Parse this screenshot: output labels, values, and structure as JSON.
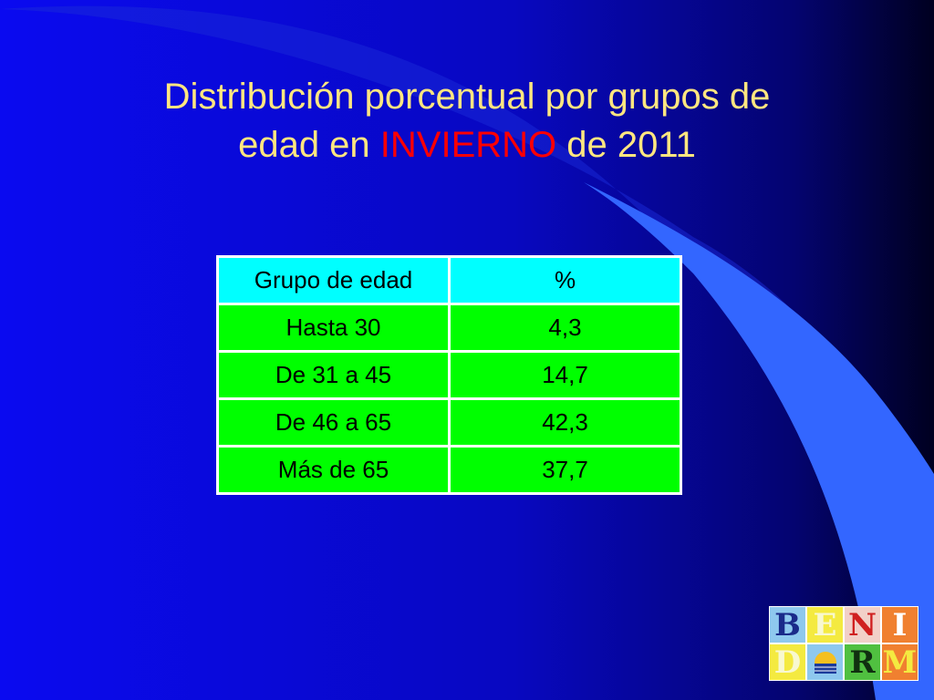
{
  "title": {
    "line1": "Distribución porcentual por grupos de",
    "line2_start": "edad en",
    "highlight": "INVIERNO",
    "line2_end": "de 2011"
  },
  "table": {
    "header": [
      "Grupo de edad",
      "%"
    ],
    "rows": [
      [
        "Hasta 30",
        "4,3"
      ],
      [
        "De 31 a 45",
        "14,7"
      ],
      [
        "De 46 a 65",
        "42,3"
      ],
      [
        "Más de 65",
        "37,7"
      ]
    ]
  },
  "logo": {
    "letters": [
      "B",
      "E",
      "N",
      "I",
      "D",
      "R",
      "M"
    ]
  }
}
